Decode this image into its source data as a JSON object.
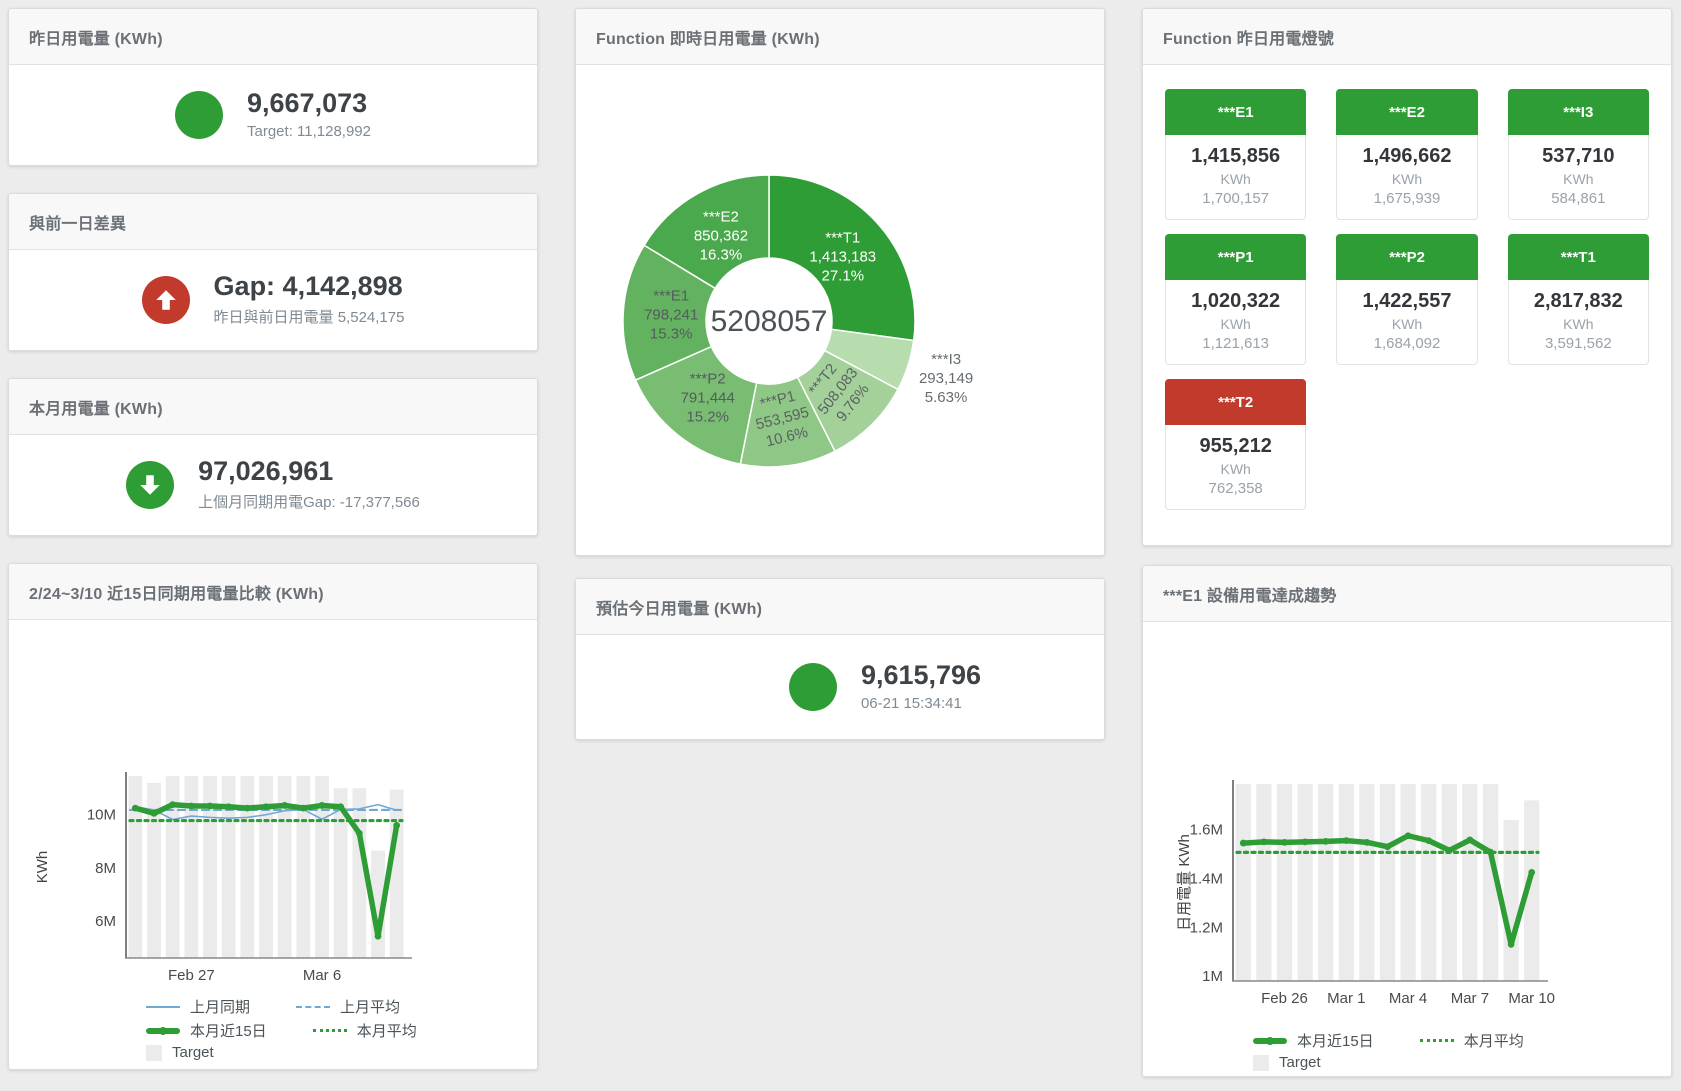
{
  "colors": {
    "green": "#2f9d35",
    "red": "#c13a2b",
    "bar_gray": "#ebebeb",
    "blue_line": "#6fa8d2"
  },
  "cards": {
    "yesterday": {
      "title": "昨日用電量 (KWh)",
      "value": "9,667,073",
      "subtext": "Target: 11,128,992",
      "status_color": "#2f9d35"
    },
    "gap": {
      "title": "與前一日差異",
      "value": "Gap: 4,142,898",
      "subtext": "昨日與前日用電量 5,524,175",
      "status_color": "#c13a2b",
      "direction": "up"
    },
    "month": {
      "title": "本月用電量 (KWh)",
      "value": "97,026,961",
      "subtext": "上個月同期用電Gap: -17,377,566",
      "status_color": "#2f9d35",
      "direction": "down"
    },
    "estimate": {
      "title": "預估今日用電量 (KWh)",
      "value": "9,615,796",
      "subtext": "06-21 15:34:41",
      "status_color": "#2f9d35"
    }
  },
  "lights_panel": {
    "title": "Function 昨日用電燈號",
    "unit_label": "KWh",
    "tiles": [
      {
        "name": "***E1",
        "value": "1,415,856",
        "unit": "KWh",
        "target": "1,700,157",
        "status": "green"
      },
      {
        "name": "***E2",
        "value": "1,496,662",
        "unit": "KWh",
        "target": "1,675,939",
        "status": "green"
      },
      {
        "name": "***I3",
        "value": "537,710",
        "unit": "KWh",
        "target": "584,861",
        "status": "green"
      },
      {
        "name": "***P1",
        "value": "1,020,322",
        "unit": "KWh",
        "target": "1,121,613",
        "status": "green"
      },
      {
        "name": "***P2",
        "value": "1,422,557",
        "unit": "KWh",
        "target": "1,684,092",
        "status": "green"
      },
      {
        "name": "***T1",
        "value": "2,817,832",
        "unit": "KWh",
        "target": "3,591,562",
        "status": "green"
      },
      {
        "name": "***T2",
        "value": "955,212",
        "unit": "KWh",
        "target": "762,358",
        "status": "red"
      }
    ]
  },
  "chart_data": {
    "donut": {
      "type": "pie",
      "title": "Function 即時日用電量 (KWh)",
      "center_total": "5208057",
      "slices": [
        {
          "name": "***T1",
          "value": 1413183,
          "value_str": "1,413,183",
          "pct": 27.1,
          "pct_str": "27.1%",
          "color": "#2f9d35",
          "label_color": "#ffffff"
        },
        {
          "name": "***I3",
          "value": 293149,
          "value_str": "293,149",
          "pct": 5.63,
          "pct_str": "5.63%",
          "color": "#b7dcae",
          "label_color": "#666c70",
          "outside": true
        },
        {
          "name": "***T2",
          "value": 508083,
          "value_str": "508,083",
          "pct": 9.76,
          "pct_str": "9.76%",
          "color": "#a3d199",
          "label_color": "#5a6165",
          "rotate": -52
        },
        {
          "name": "***P1",
          "value": 553595,
          "value_str": "553,595",
          "pct": 10.6,
          "pct_str": "10.6%",
          "color": "#8fc786",
          "label_color": "#5a6165",
          "rotate": -14
        },
        {
          "name": "***P2",
          "value": 791444,
          "value_str": "791,444",
          "pct": 15.2,
          "pct_str": "15.2%",
          "color": "#79bd72",
          "label_color": "#555b5f"
        },
        {
          "name": "***E1",
          "value": 798241,
          "value_str": "798,241",
          "pct": 15.3,
          "pct_str": "15.3%",
          "color": "#62b260",
          "label_color": "#555b5f"
        },
        {
          "name": "***E2",
          "value": 850362,
          "value_str": "850,362",
          "pct": 16.3,
          "pct_str": "16.3%",
          "color": "#4aa94d",
          "label_color": "#ffffff"
        }
      ]
    },
    "compare": {
      "type": "line+bar",
      "title": "2/24~3/10 近15日同期用電量比較 (KWh)",
      "ylabel": "KWh",
      "unit": "M KWh",
      "categories": [
        "2/24",
        "2/25",
        "2/26",
        "2/27",
        "2/28",
        "3/1",
        "3/2",
        "3/3",
        "3/4",
        "3/5",
        "3/6",
        "3/7",
        "3/8",
        "3/9",
        "3/10"
      ],
      "ylim": [
        4.6,
        11.46
      ],
      "yticks": [
        {
          "v": 6,
          "label": "6M"
        },
        {
          "v": 8,
          "label": "8M"
        },
        {
          "v": 10,
          "label": "10M"
        }
      ],
      "xticks": [
        {
          "i": 3,
          "label": "Feb 27"
        },
        {
          "i": 10,
          "label": "Mar 6"
        }
      ],
      "target_bars": [
        11.5,
        11.2,
        11.5,
        11.5,
        11.5,
        11.5,
        11.5,
        11.5,
        11.5,
        11.5,
        11.5,
        11.0,
        11.0,
        8.65,
        10.95
      ],
      "series": [
        {
          "name": "上月同期",
          "style": "line",
          "color": "#6fa8d2",
          "width": 1.6,
          "values": [
            10.3,
            10.18,
            9.82,
            9.95,
            9.9,
            9.87,
            9.9,
            10.0,
            10.15,
            10.2,
            9.83,
            10.2,
            10.22,
            10.38,
            10.17
          ]
        },
        {
          "name": "上月平均",
          "style": "dashed",
          "color": "#6fa8d2",
          "width": 2.2,
          "values": 10.18
        },
        {
          "name": "本月近15日",
          "style": "line",
          "color": "#2f9d35",
          "width": 5.5,
          "markers": true,
          "values": [
            10.25,
            10.05,
            10.38,
            10.33,
            10.33,
            10.3,
            10.25,
            10.3,
            10.35,
            10.25,
            10.35,
            10.3,
            9.3,
            5.42,
            9.6
          ]
        },
        {
          "name": "本月平均",
          "style": "dotted",
          "color": "#2f9d35",
          "width": 3.2,
          "values": 9.78
        }
      ],
      "legend_rows": [
        [
          {
            "label": "上月同期",
            "swatch": "line-blue"
          },
          {
            "label": "上月平均",
            "swatch": "dash-blue"
          }
        ],
        [
          {
            "label": "本月近15日",
            "swatch": "thick-green"
          },
          {
            "label": "本月平均",
            "swatch": "dot-green"
          }
        ],
        [
          {
            "label": "Target",
            "swatch": "square-gray"
          }
        ]
      ]
    },
    "trend": {
      "type": "line+bar",
      "title": "***E1 設備用電達成趨勢",
      "ylabel": "日用電量 KWh",
      "unit": "M KWh",
      "categories": [
        "2/24",
        "2/25",
        "2/26",
        "2/27",
        "2/28",
        "3/1",
        "3/2",
        "3/3",
        "3/4",
        "3/5",
        "3/6",
        "3/7",
        "3/8",
        "3/9",
        "3/10"
      ],
      "ylim": [
        0.98,
        1.787
      ],
      "yticks": [
        {
          "v": 1,
          "label": "1M"
        },
        {
          "v": 1.2,
          "label": "1.2M"
        },
        {
          "v": 1.4,
          "label": "1.4M"
        },
        {
          "v": 1.6,
          "label": "1.6M"
        }
      ],
      "xticks": [
        {
          "i": 2,
          "label": "Feb 26"
        },
        {
          "i": 5,
          "label": "Mar 1"
        },
        {
          "i": 8,
          "label": "Mar 4"
        },
        {
          "i": 11,
          "label": "Mar 7"
        },
        {
          "i": 14,
          "label": "Mar 10"
        }
      ],
      "target_bars": [
        1.787,
        1.787,
        1.787,
        1.787,
        1.787,
        1.787,
        1.787,
        1.787,
        1.787,
        1.787,
        1.787,
        1.787,
        1.787,
        1.64,
        1.72
      ],
      "series": [
        {
          "name": "本月近15日",
          "style": "line",
          "color": "#2f9d35",
          "width": 5.5,
          "markers": true,
          "values": [
            1.545,
            1.55,
            1.548,
            1.55,
            1.552,
            1.555,
            1.548,
            1.53,
            1.575,
            1.555,
            1.515,
            1.558,
            1.508,
            1.13,
            1.425
          ]
        },
        {
          "name": "本月平均",
          "style": "dotted",
          "color": "#2f9d35",
          "width": 3.2,
          "values": 1.507
        }
      ],
      "legend_rows": [
        [
          {
            "label": "本月近15日",
            "swatch": "thick-green"
          },
          {
            "label": "本月平均",
            "swatch": "dot-green"
          }
        ],
        [
          {
            "label": "Target",
            "swatch": "square-gray"
          }
        ]
      ]
    }
  }
}
